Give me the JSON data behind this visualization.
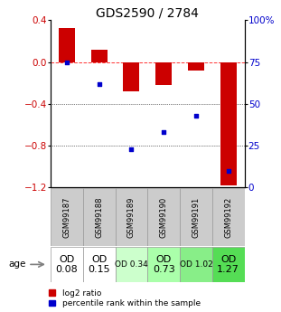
{
  "title": "GDS2590 / 2784",
  "samples": [
    "GSM99187",
    "GSM99188",
    "GSM99189",
    "GSM99190",
    "GSM99191",
    "GSM99192"
  ],
  "log2_ratio": [
    0.33,
    0.12,
    -0.28,
    -0.22,
    -0.08,
    -1.18
  ],
  "percentile_rank": [
    75,
    62,
    23,
    33,
    43,
    10
  ],
  "bar_color": "#cc0000",
  "dot_color": "#0000cc",
  "ylim_left": [
    -1.2,
    0.4
  ],
  "ylim_right": [
    0,
    100
  ],
  "yticks_left": [
    0.4,
    0.0,
    -0.4,
    -0.8,
    -1.2
  ],
  "yticks_right": [
    100,
    75,
    50,
    25,
    0
  ],
  "dotted_lines": [
    -0.4,
    -0.8
  ],
  "row_labels": [
    "OD\n0.08",
    "OD\n0.15",
    "OD 0.34",
    "OD\n0.73",
    "OD 1.02",
    "OD\n1.27"
  ],
  "row_bg_colors": [
    "#ffffff",
    "#ffffff",
    "#ccffcc",
    "#aaffaa",
    "#88ee88",
    "#55dd55"
  ],
  "row_fontsize": [
    8,
    8,
    6.5,
    8,
    6.5,
    8
  ],
  "age_label": "age",
  "legend_items": [
    "log2 ratio",
    "percentile rank within the sample"
  ],
  "background_color": "#ffffff",
  "title_fontsize": 10,
  "tick_fontsize": 7.5,
  "bar_width": 0.5
}
